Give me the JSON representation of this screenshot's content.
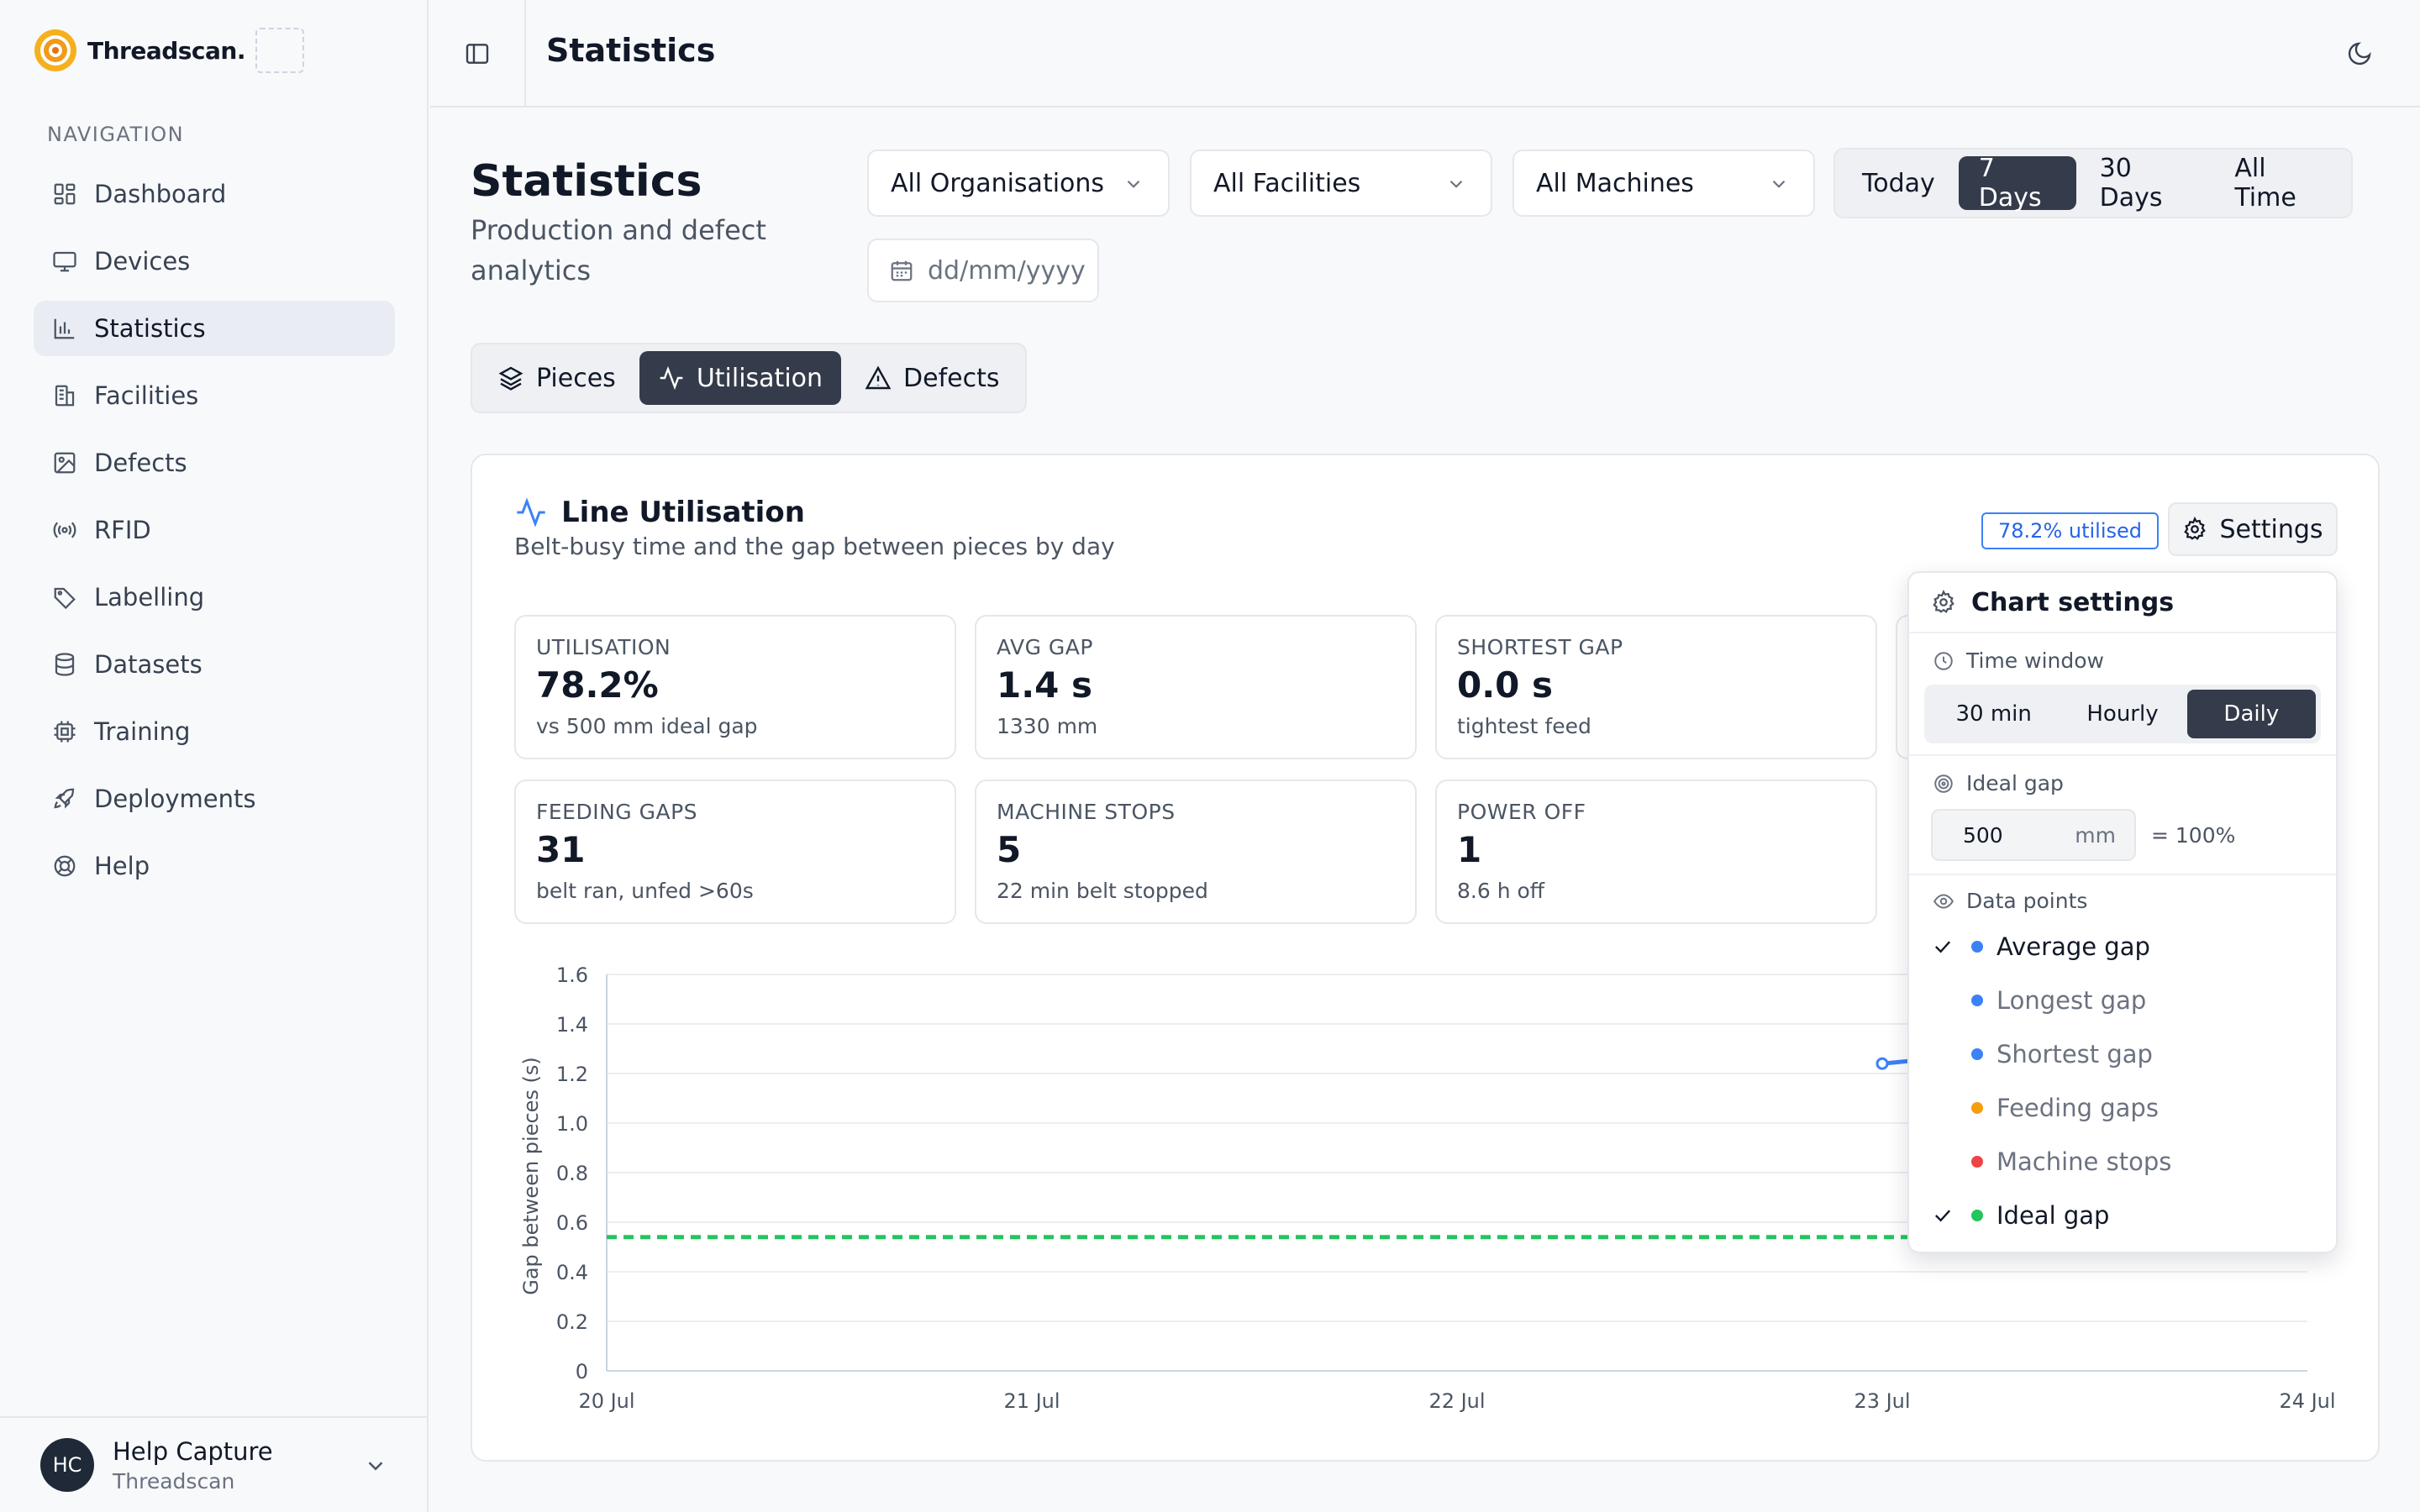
{
  "brand": {
    "name": "Threadscan."
  },
  "sidebar": {
    "heading": "NAVIGATION",
    "items": [
      {
        "label": "Dashboard",
        "icon": "layout-grid-icon",
        "active": false
      },
      {
        "label": "Devices",
        "icon": "monitor-icon",
        "active": false
      },
      {
        "label": "Statistics",
        "icon": "bar-chart-icon",
        "active": true
      },
      {
        "label": "Facilities",
        "icon": "building-icon",
        "active": false
      },
      {
        "label": "Defects",
        "icon": "image-icon",
        "active": false
      },
      {
        "label": "RFID",
        "icon": "radio-icon",
        "active": false
      },
      {
        "label": "Labelling",
        "icon": "tag-icon",
        "active": false
      },
      {
        "label": "Datasets",
        "icon": "database-icon",
        "active": false
      },
      {
        "label": "Training",
        "icon": "cpu-icon",
        "active": false
      },
      {
        "label": "Deployments",
        "icon": "rocket-icon",
        "active": false
      },
      {
        "label": "Help",
        "icon": "life-buoy-icon",
        "active": false
      }
    ]
  },
  "user": {
    "initials": "HC",
    "name": "Help Capture",
    "org": "Threadscan"
  },
  "header": {
    "title": "Statistics"
  },
  "page": {
    "title": "Statistics",
    "subtitle": "Production and defect analytics"
  },
  "filters": {
    "organisation": "All Organisations",
    "facility": "All Facilities",
    "machine": "All Machines",
    "date_placeholder": "dd/mm/yyyy",
    "ranges": [
      {
        "label": "Today",
        "active": false
      },
      {
        "label": "7 Days",
        "active": true
      },
      {
        "label": "30 Days",
        "active": false
      },
      {
        "label": "All Time",
        "active": false
      }
    ]
  },
  "tabs": [
    {
      "label": "Pieces",
      "icon": "layers-icon",
      "active": false
    },
    {
      "label": "Utilisation",
      "icon": "activity-icon",
      "active": true
    },
    {
      "label": "Defects",
      "icon": "alert-triangle-icon",
      "active": false
    }
  ],
  "card": {
    "title": "Line Utilisation",
    "subtitle": "Belt-busy time and the gap between pieces by day",
    "badge": "78.2% utilised",
    "settings_label": "Settings"
  },
  "stats": [
    {
      "label": "UTILISATION",
      "value": "78.2%",
      "note": "vs 500 mm ideal gap"
    },
    {
      "label": "AVG GAP",
      "value": "1.4 s",
      "note": "1330 mm"
    },
    {
      "label": "SHORTEST GAP",
      "value": "0.0 s",
      "note": "tightest feed"
    },
    {
      "label": "FEEDING GAPS",
      "value": "31",
      "note": "belt ran, unfed >60s"
    },
    {
      "label": "MACHINE STOPS",
      "value": "5",
      "note": "22 min belt stopped"
    },
    {
      "label": "POWER OFF",
      "value": "1",
      "note": "8.6 h off"
    }
  ],
  "chart_data": {
    "type": "line",
    "ylabel": "Gap between pieces (s)",
    "xlabel": "",
    "ylim": [
      0,
      1.6
    ],
    "y_ticks": [
      "0",
      "0.2",
      "0.4",
      "0.6",
      "0.8",
      "1.0",
      "1.2",
      "1.4",
      "1.6"
    ],
    "x_ticks": [
      "20 Jul",
      "21 Jul",
      "22 Jul",
      "23 Jul",
      "24 Jul"
    ],
    "grid": true,
    "series": [
      {
        "name": "Average gap",
        "color": "#3b82f6",
        "x": [
          "23 Jul",
          "23 Jul +0.1"
        ],
        "values": [
          1.24,
          1.26
        ]
      },
      {
        "name": "Ideal gap",
        "color": "#22c55e",
        "style": "dashed",
        "values": [
          0.54,
          0.54
        ]
      }
    ]
  },
  "settings_panel": {
    "title": "Chart settings",
    "time_window_label": "Time window",
    "windows": [
      {
        "label": "30 min",
        "active": false
      },
      {
        "label": "Hourly",
        "active": false
      },
      {
        "label": "Daily",
        "active": true
      }
    ],
    "ideal_gap_label": "Ideal gap",
    "ideal_gap_value": "500",
    "ideal_gap_unit": "mm",
    "ideal_gap_equals": "= 100%",
    "data_points_label": "Data points",
    "data_points": [
      {
        "label": "Average gap",
        "checked": true,
        "color": "#3b82f6"
      },
      {
        "label": "Longest gap",
        "checked": false,
        "color": "#3b82f6"
      },
      {
        "label": "Shortest gap",
        "checked": false,
        "color": "#3b82f6"
      },
      {
        "label": "Feeding gaps",
        "checked": false,
        "color": "#f59e0b"
      },
      {
        "label": "Machine stops",
        "checked": false,
        "color": "#ef4444"
      },
      {
        "label": "Ideal gap",
        "checked": true,
        "color": "#22c55e"
      }
    ]
  }
}
